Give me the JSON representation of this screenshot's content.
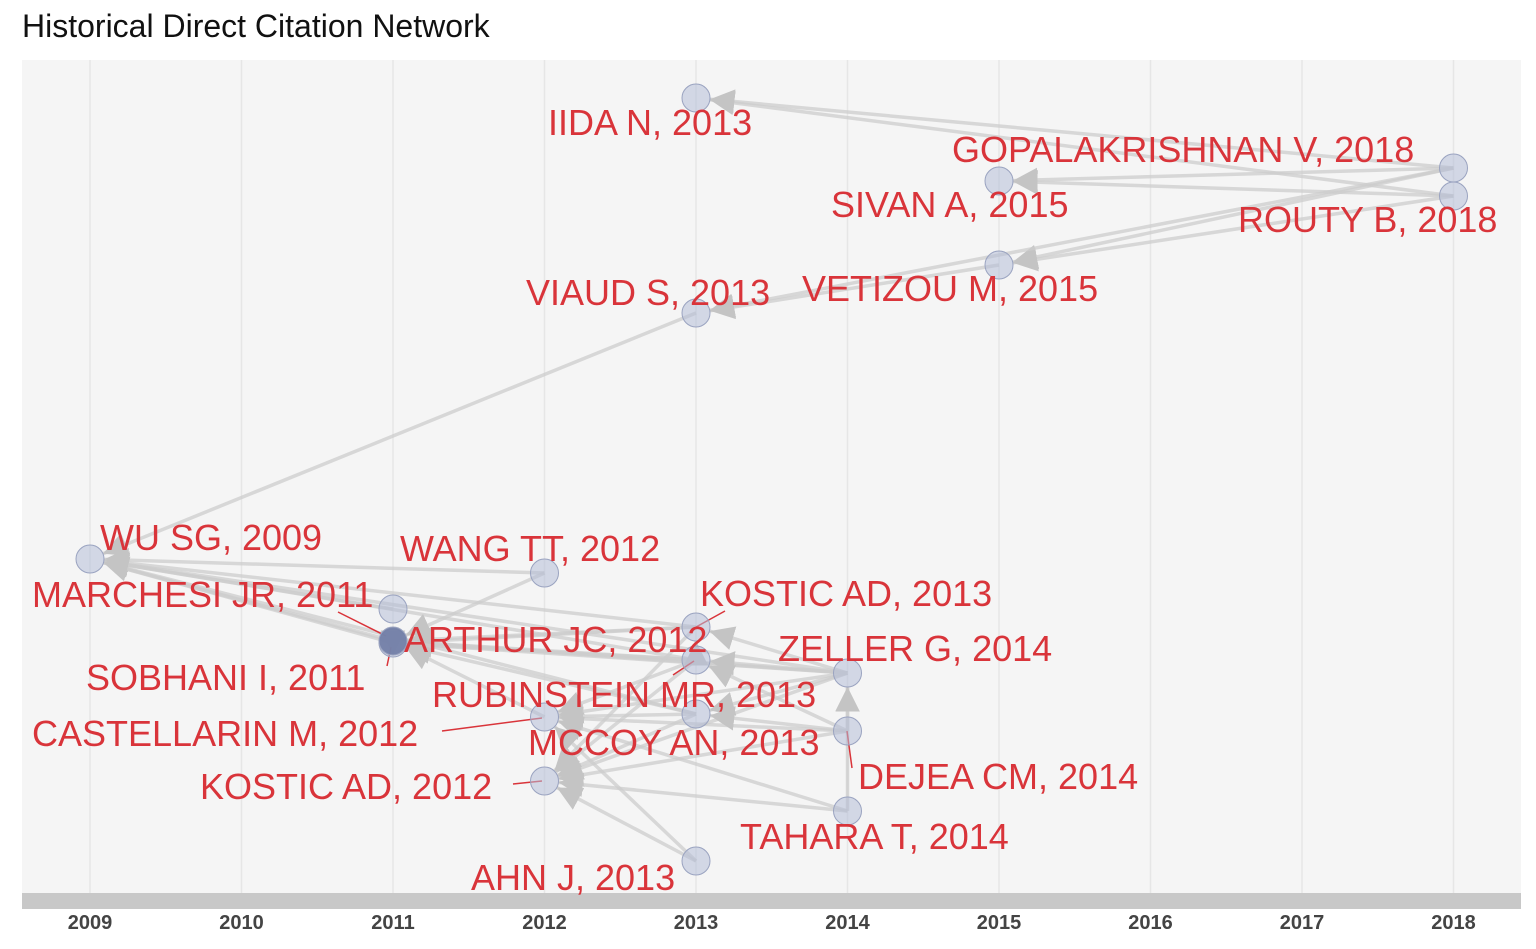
{
  "title": "Historical Direct Citation Network",
  "colors": {
    "panel": "#f5f5f5",
    "grid": "#e6e6e6",
    "axis_bar": "#c8c8c8",
    "edge": "#cccccc",
    "node_fill": "#b4bdd7",
    "node_stroke": "#9aa3c0",
    "label": "#d9343a"
  },
  "axis": {
    "years": [
      2009,
      2010,
      2011,
      2012,
      2013,
      2014,
      2015,
      2016,
      2017,
      2018
    ],
    "tick_labels": [
      "2009",
      "2010",
      "2011",
      "2012",
      "2013",
      "2014",
      "2015",
      "2016",
      "2017",
      "2018"
    ]
  },
  "nodes": [
    {
      "id": "iida",
      "label": "IIDA N, 2013",
      "year": 2013
    },
    {
      "id": "gopal",
      "label": "GOPALAKRISHNAN V, 2018",
      "year": 2018
    },
    {
      "id": "sivan",
      "label": "SIVAN A, 2015",
      "year": 2015
    },
    {
      "id": "routy",
      "label": "ROUTY B, 2018",
      "year": 2018
    },
    {
      "id": "vetizou",
      "label": "VETIZOU M, 2015",
      "year": 2015
    },
    {
      "id": "viaud",
      "label": "VIAUD S, 2013",
      "year": 2013
    },
    {
      "id": "wu",
      "label": "WU SG, 2009",
      "year": 2009
    },
    {
      "id": "wang",
      "label": "WANG TT, 2012",
      "year": 2012
    },
    {
      "id": "marchesi",
      "label": "MARCHESI JR, 2011",
      "year": 2011
    },
    {
      "id": "kostic13",
      "label": "KOSTIC AD, 2013",
      "year": 2013
    },
    {
      "id": "arthur",
      "label": "ARTHUR JC, 2012",
      "year": 2012
    },
    {
      "id": "zeller",
      "label": "ZELLER G, 2014",
      "year": 2014
    },
    {
      "id": "sobhani",
      "label": "SOBHANI I, 2011",
      "year": 2011
    },
    {
      "id": "rubinstein",
      "label": "RUBINSTEIN MR, 2013",
      "year": 2013
    },
    {
      "id": "castellarin",
      "label": "CASTELLARIN M, 2012",
      "year": 2012
    },
    {
      "id": "mccoy",
      "label": "MCCOY AN, 2013",
      "year": 2013
    },
    {
      "id": "dejea",
      "label": "DEJEA CM, 2014",
      "year": 2014
    },
    {
      "id": "kostic12",
      "label": "KOSTIC AD, 2012",
      "year": 2012
    },
    {
      "id": "tahara",
      "label": "TAHARA T, 2014",
      "year": 2014
    },
    {
      "id": "ahn",
      "label": "AHN J, 2013",
      "year": 2013
    }
  ],
  "edges": [
    [
      "gopal",
      "iida"
    ],
    [
      "routy",
      "iida"
    ],
    [
      "gopal",
      "sivan"
    ],
    [
      "routy",
      "sivan"
    ],
    [
      "gopal",
      "vetizou"
    ],
    [
      "routy",
      "vetizou"
    ],
    [
      "gopal",
      "viaud"
    ],
    [
      "vetizou",
      "viaud"
    ],
    [
      "viaud",
      "wu"
    ],
    [
      "wang",
      "wu"
    ],
    [
      "marchesi",
      "wu"
    ],
    [
      "sobhani",
      "wu"
    ],
    [
      "arthur",
      "wu"
    ],
    [
      "kostic13",
      "wu"
    ],
    [
      "rubinstein",
      "wu"
    ],
    [
      "zeller",
      "wu"
    ],
    [
      "wang",
      "sobhani"
    ],
    [
      "arthur",
      "sobhani"
    ],
    [
      "kostic13",
      "sobhani"
    ],
    [
      "rubinstein",
      "sobhani"
    ],
    [
      "castellarin",
      "sobhani"
    ],
    [
      "zeller",
      "sobhani"
    ],
    [
      "kostic13",
      "arthur"
    ],
    [
      "zeller",
      "arthur"
    ],
    [
      "rubinstein",
      "arthur"
    ],
    [
      "mccoy",
      "arthur"
    ],
    [
      "zeller",
      "kostic13"
    ],
    [
      "dejea",
      "castellarin"
    ],
    [
      "rubinstein",
      "castellarin"
    ],
    [
      "mccoy",
      "castellarin"
    ],
    [
      "zeller",
      "castellarin"
    ],
    [
      "dejea",
      "kostic12"
    ],
    [
      "tahara",
      "kostic12"
    ],
    [
      "ahn",
      "kostic12"
    ],
    [
      "mccoy",
      "kostic12"
    ],
    [
      "zeller",
      "kostic12"
    ],
    [
      "rubinstein",
      "kostic12"
    ],
    [
      "tahara",
      "castellarin"
    ],
    [
      "dejea",
      "rubinstein"
    ],
    [
      "tahara",
      "zeller"
    ],
    [
      "dejea",
      "zeller"
    ],
    [
      "ahn",
      "castellarin"
    ],
    [
      "zeller",
      "rubinstein"
    ],
    [
      "zeller",
      "mccoy"
    ],
    [
      "dejea",
      "mccoy"
    ],
    [
      "kostic13",
      "kostic12"
    ],
    [
      "rubinstein",
      "kostic13"
    ],
    [
      "mccoy",
      "wu"
    ]
  ]
}
